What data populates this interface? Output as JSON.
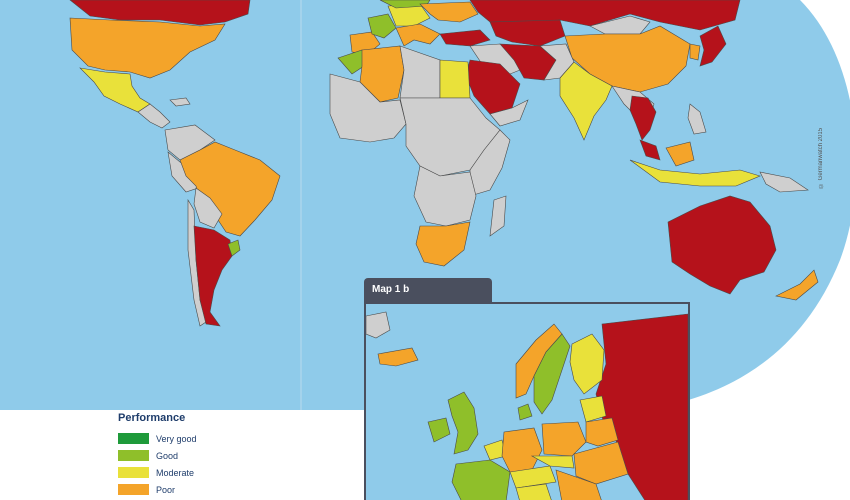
{
  "colors": {
    "ocean": "#8fcbea",
    "no_data": "#cfcfcf",
    "border": "#4a4a4a",
    "very_good": "#1e9a3a",
    "good": "#8fbf2a",
    "moderate": "#e9e13a",
    "poor": "#f4a42a",
    "very_poor": "#b5121b"
  },
  "legend": {
    "title": "Performance",
    "items": [
      {
        "label": "Very good",
        "color": "#1e9a3a"
      },
      {
        "label": "Good",
        "color": "#8fbf2a"
      },
      {
        "label": "Moderate",
        "color": "#e9e13a"
      },
      {
        "label": "Poor",
        "color": "#f4a42a"
      }
    ]
  },
  "inset": {
    "title": "Map 1 b"
  },
  "credit": "© Germanwatch 2015",
  "countries": [
    {
      "name": "Canada",
      "rating": "very_poor"
    },
    {
      "name": "United States",
      "rating": "poor"
    },
    {
      "name": "Mexico",
      "rating": "moderate"
    },
    {
      "name": "Brazil",
      "rating": "poor"
    },
    {
      "name": "Argentina",
      "rating": "very_poor"
    },
    {
      "name": "Algeria",
      "rating": "poor"
    },
    {
      "name": "Morocco",
      "rating": "good"
    },
    {
      "name": "Egypt",
      "rating": "moderate"
    },
    {
      "name": "Saudi Arabia",
      "rating": "very_poor"
    },
    {
      "name": "Iran",
      "rating": "very_poor"
    },
    {
      "name": "Russia",
      "rating": "very_poor"
    },
    {
      "name": "China",
      "rating": "poor"
    },
    {
      "name": "India",
      "rating": "moderate"
    },
    {
      "name": "Thailand",
      "rating": "very_poor"
    },
    {
      "name": "Japan",
      "rating": "very_poor"
    },
    {
      "name": "Indonesia",
      "rating": "moderate"
    },
    {
      "name": "Australia",
      "rating": "very_poor"
    },
    {
      "name": "South Africa",
      "rating": "poor"
    },
    {
      "name": "New Zealand",
      "rating": "poor"
    },
    {
      "name": "Kazakhstan",
      "rating": "very_poor"
    }
  ]
}
